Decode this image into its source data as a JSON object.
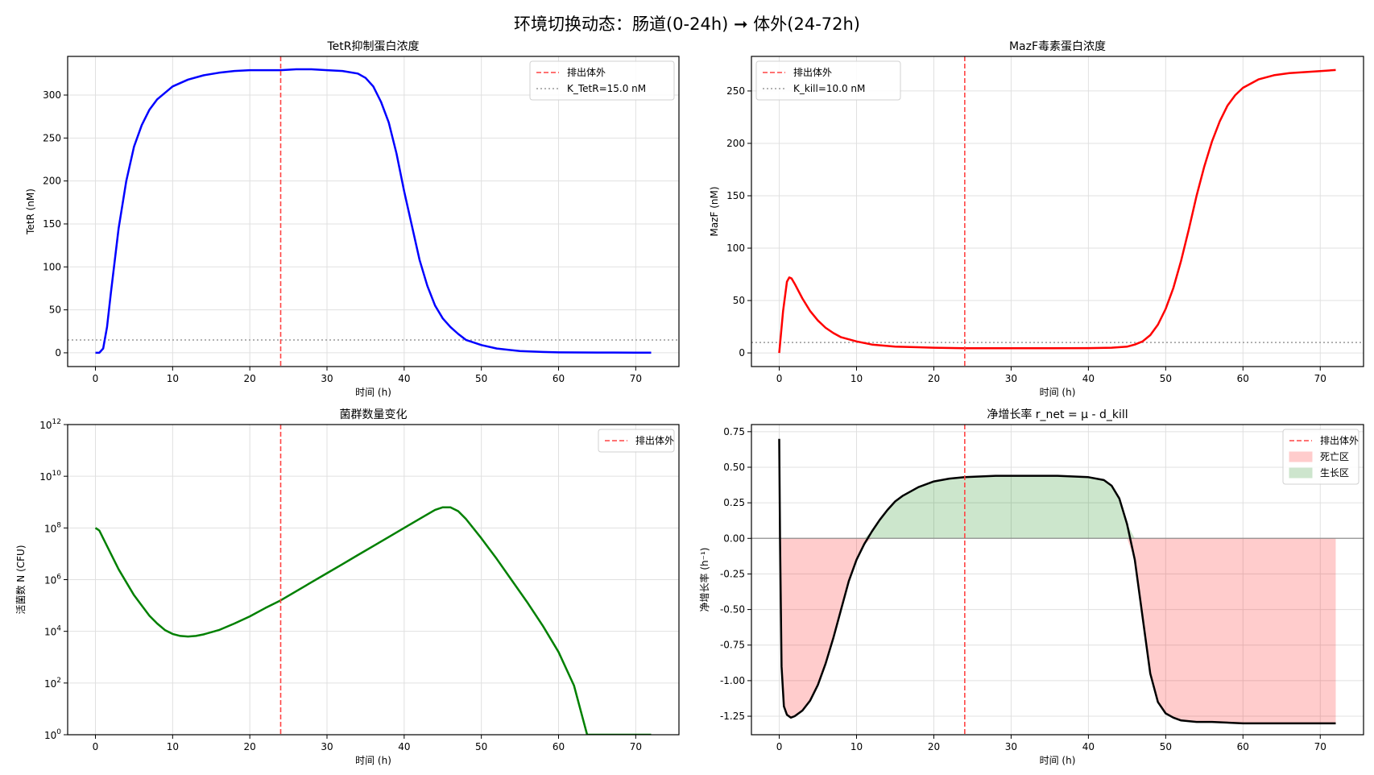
{
  "figure": {
    "suptitle": "环境切换动态：肠道(0-24h) ➞ 体外(24-72h)"
  },
  "colors": {
    "tetr": "#0000ff",
    "mazf": "#ff0000",
    "population": "#008000",
    "rnet": "#000000",
    "exit_line": "#ff4444",
    "threshold": "#999999",
    "death_fill": "#ffcccc",
    "growth_fill": "#cde5cd",
    "grid": "#e0e0e0"
  },
  "chart_data": [
    {
      "id": "tetr",
      "type": "line",
      "title": "TetR抑制蛋白浓度",
      "xlabel": "时间 (h)",
      "ylabel": "TetR (nM)",
      "xlim": [
        -3.6,
        75.6
      ],
      "ylim": [
        -16,
        345
      ],
      "xticks": [
        0,
        10,
        20,
        30,
        40,
        50,
        60,
        70
      ],
      "yticks": [
        0,
        50,
        100,
        150,
        200,
        250,
        300
      ],
      "grid": true,
      "legend_position": "upper right",
      "legend": [
        {
          "label": "排出体外",
          "style": "dashed",
          "color": "#ff4444"
        },
        {
          "label": "K_TetR=15.0 nM",
          "style": "dotted",
          "color": "#999999"
        }
      ],
      "vline_x": 24,
      "hline_y": 15,
      "series": [
        {
          "name": "TetR",
          "x": [
            0,
            0.5,
            1,
            1.5,
            2,
            3,
            4,
            5,
            6,
            7,
            8,
            10,
            12,
            14,
            16,
            18,
            20,
            22,
            24,
            26,
            28,
            30,
            32,
            34,
            35,
            36,
            37,
            38,
            39,
            40,
            41,
            42,
            43,
            44,
            45,
            46,
            47,
            48,
            50,
            52,
            55,
            58,
            60,
            65,
            70,
            72
          ],
          "values": [
            0,
            0,
            5,
            30,
            70,
            145,
            200,
            240,
            265,
            283,
            295,
            310,
            318,
            323,
            326,
            328,
            329,
            329,
            329,
            330,
            330,
            329,
            328,
            325,
            320,
            310,
            292,
            268,
            232,
            188,
            148,
            108,
            78,
            55,
            40,
            30,
            22,
            15,
            9,
            5,
            2,
            1,
            0.5,
            0.3,
            0.2,
            0.1
          ]
        }
      ]
    },
    {
      "id": "mazf",
      "type": "line",
      "title": "MazF毒素蛋白浓度",
      "xlabel": "时间 (h)",
      "ylabel": "MazF (nM)",
      "xlim": [
        -3.6,
        75.6
      ],
      "ylim": [
        -13,
        283
      ],
      "xticks": [
        0,
        10,
        20,
        30,
        40,
        50,
        60,
        70
      ],
      "yticks": [
        0,
        50,
        100,
        150,
        200,
        250
      ],
      "grid": true,
      "legend_position": "upper left",
      "legend": [
        {
          "label": "排出体外",
          "style": "dashed",
          "color": "#ff4444"
        },
        {
          "label": "K_kill=10.0 nM",
          "style": "dotted",
          "color": "#999999"
        }
      ],
      "vline_x": 24,
      "hline_y": 10,
      "series": [
        {
          "name": "MazF",
          "x": [
            0,
            0.5,
            1,
            1.3,
            1.6,
            2,
            3,
            4,
            5,
            6,
            7,
            8,
            10,
            12,
            15,
            20,
            24,
            30,
            35,
            40,
            43,
            45,
            46,
            47,
            48,
            49,
            50,
            51,
            52,
            53,
            54,
            55,
            56,
            57,
            58,
            59,
            60,
            62,
            64,
            66,
            68,
            70,
            72
          ],
          "values": [
            0,
            40,
            68,
            72,
            71,
            66,
            52,
            40,
            31,
            24,
            19,
            15,
            11,
            8,
            6,
            5,
            4.5,
            4.5,
            4.5,
            4.6,
            5,
            6,
            8,
            11,
            17,
            27,
            42,
            62,
            88,
            118,
            150,
            178,
            202,
            221,
            236,
            246,
            253,
            261,
            265,
            267,
            268,
            269,
            270
          ]
        }
      ]
    },
    {
      "id": "population",
      "type": "line",
      "title": "菌群数量变化",
      "xlabel": "时间 (h)",
      "ylabel": "活菌数 N (CFU)",
      "yscale": "log",
      "xlim": [
        -3.6,
        75.6
      ],
      "ylim": [
        1,
        1000000000000.0
      ],
      "xticks": [
        0,
        10,
        20,
        30,
        40,
        50,
        60,
        70
      ],
      "yticks": [
        "10^0",
        "10^2",
        "10^4",
        "10^6",
        "10^8",
        "10^10",
        "10^12"
      ],
      "grid": true,
      "legend_position": "upper right",
      "legend": [
        {
          "label": "排出体外",
          "style": "dashed",
          "color": "#ff4444"
        }
      ],
      "vline_x": 24,
      "series": [
        {
          "name": "N",
          "x": [
            0,
            0.5,
            1,
            2,
            3,
            4,
            5,
            6,
            7,
            8,
            9,
            10,
            11,
            12,
            13,
            14,
            16,
            18,
            20,
            22,
            24,
            26,
            28,
            30,
            32,
            34,
            36,
            38,
            40,
            42,
            44,
            45,
            46,
            47,
            48,
            50,
            52,
            54,
            56,
            58,
            60,
            62,
            63.7,
            66,
            68,
            70,
            72
          ],
          "log10_values": [
            8.0,
            7.9,
            7.6,
            7.0,
            6.4,
            5.9,
            5.4,
            5.0,
            4.6,
            4.3,
            4.05,
            3.9,
            3.82,
            3.8,
            3.82,
            3.88,
            4.05,
            4.3,
            4.58,
            4.9,
            5.2,
            5.55,
            5.9,
            6.25,
            6.6,
            6.95,
            7.3,
            7.65,
            8.0,
            8.35,
            8.7,
            8.8,
            8.8,
            8.65,
            8.35,
            7.6,
            6.8,
            5.95,
            5.1,
            4.2,
            3.2,
            1.9,
            0,
            0,
            0,
            0,
            0
          ]
        }
      ]
    },
    {
      "id": "net_growth",
      "type": "area",
      "title": "净增长率 r_net = μ - d_kill",
      "xlabel": "时间 (h)",
      "ylabel": "净增长率 (h⁻¹)",
      "xlim": [
        -3.6,
        75.6
      ],
      "ylim": [
        -1.38,
        0.8
      ],
      "xticks": [
        0,
        10,
        20,
        30,
        40,
        50,
        60,
        70
      ],
      "yticks": [
        "0.75",
        "0.50",
        "0.25",
        "0.00",
        "-0.25",
        "-0.50",
        "-0.75",
        "-1.00",
        "-1.25"
      ],
      "grid": true,
      "legend_position": "upper right",
      "legend": [
        {
          "label": "排出体外",
          "style": "dashed",
          "color": "#ff4444"
        },
        {
          "label": "死亡区",
          "style": "fill",
          "color": "#ffcccc"
        },
        {
          "label": "生长区",
          "style": "fill",
          "color": "#cde5cd"
        }
      ],
      "vline_x": 24,
      "hline_y": 0,
      "series": [
        {
          "name": "r_net",
          "x": [
            0,
            0.1,
            0.3,
            0.6,
            1,
            1.5,
            2,
            3,
            4,
            5,
            6,
            7,
            8,
            9,
            10,
            11,
            12,
            13,
            14,
            15,
            16,
            18,
            20,
            22,
            24,
            28,
            32,
            36,
            40,
            42,
            43,
            44,
            45,
            46,
            47,
            48,
            49,
            50,
            51,
            52,
            54,
            56,
            60,
            65,
            72
          ],
          "values": [
            0.7,
            0.0,
            -0.9,
            -1.18,
            -1.24,
            -1.26,
            -1.25,
            -1.21,
            -1.14,
            -1.03,
            -0.88,
            -0.7,
            -0.5,
            -0.3,
            -0.15,
            -0.04,
            0.05,
            0.13,
            0.2,
            0.26,
            0.3,
            0.36,
            0.4,
            0.42,
            0.43,
            0.44,
            0.44,
            0.44,
            0.43,
            0.41,
            0.37,
            0.28,
            0.1,
            -0.15,
            -0.55,
            -0.95,
            -1.15,
            -1.23,
            -1.26,
            -1.28,
            -1.29,
            -1.29,
            -1.3,
            -1.3,
            -1.3
          ]
        }
      ]
    }
  ]
}
